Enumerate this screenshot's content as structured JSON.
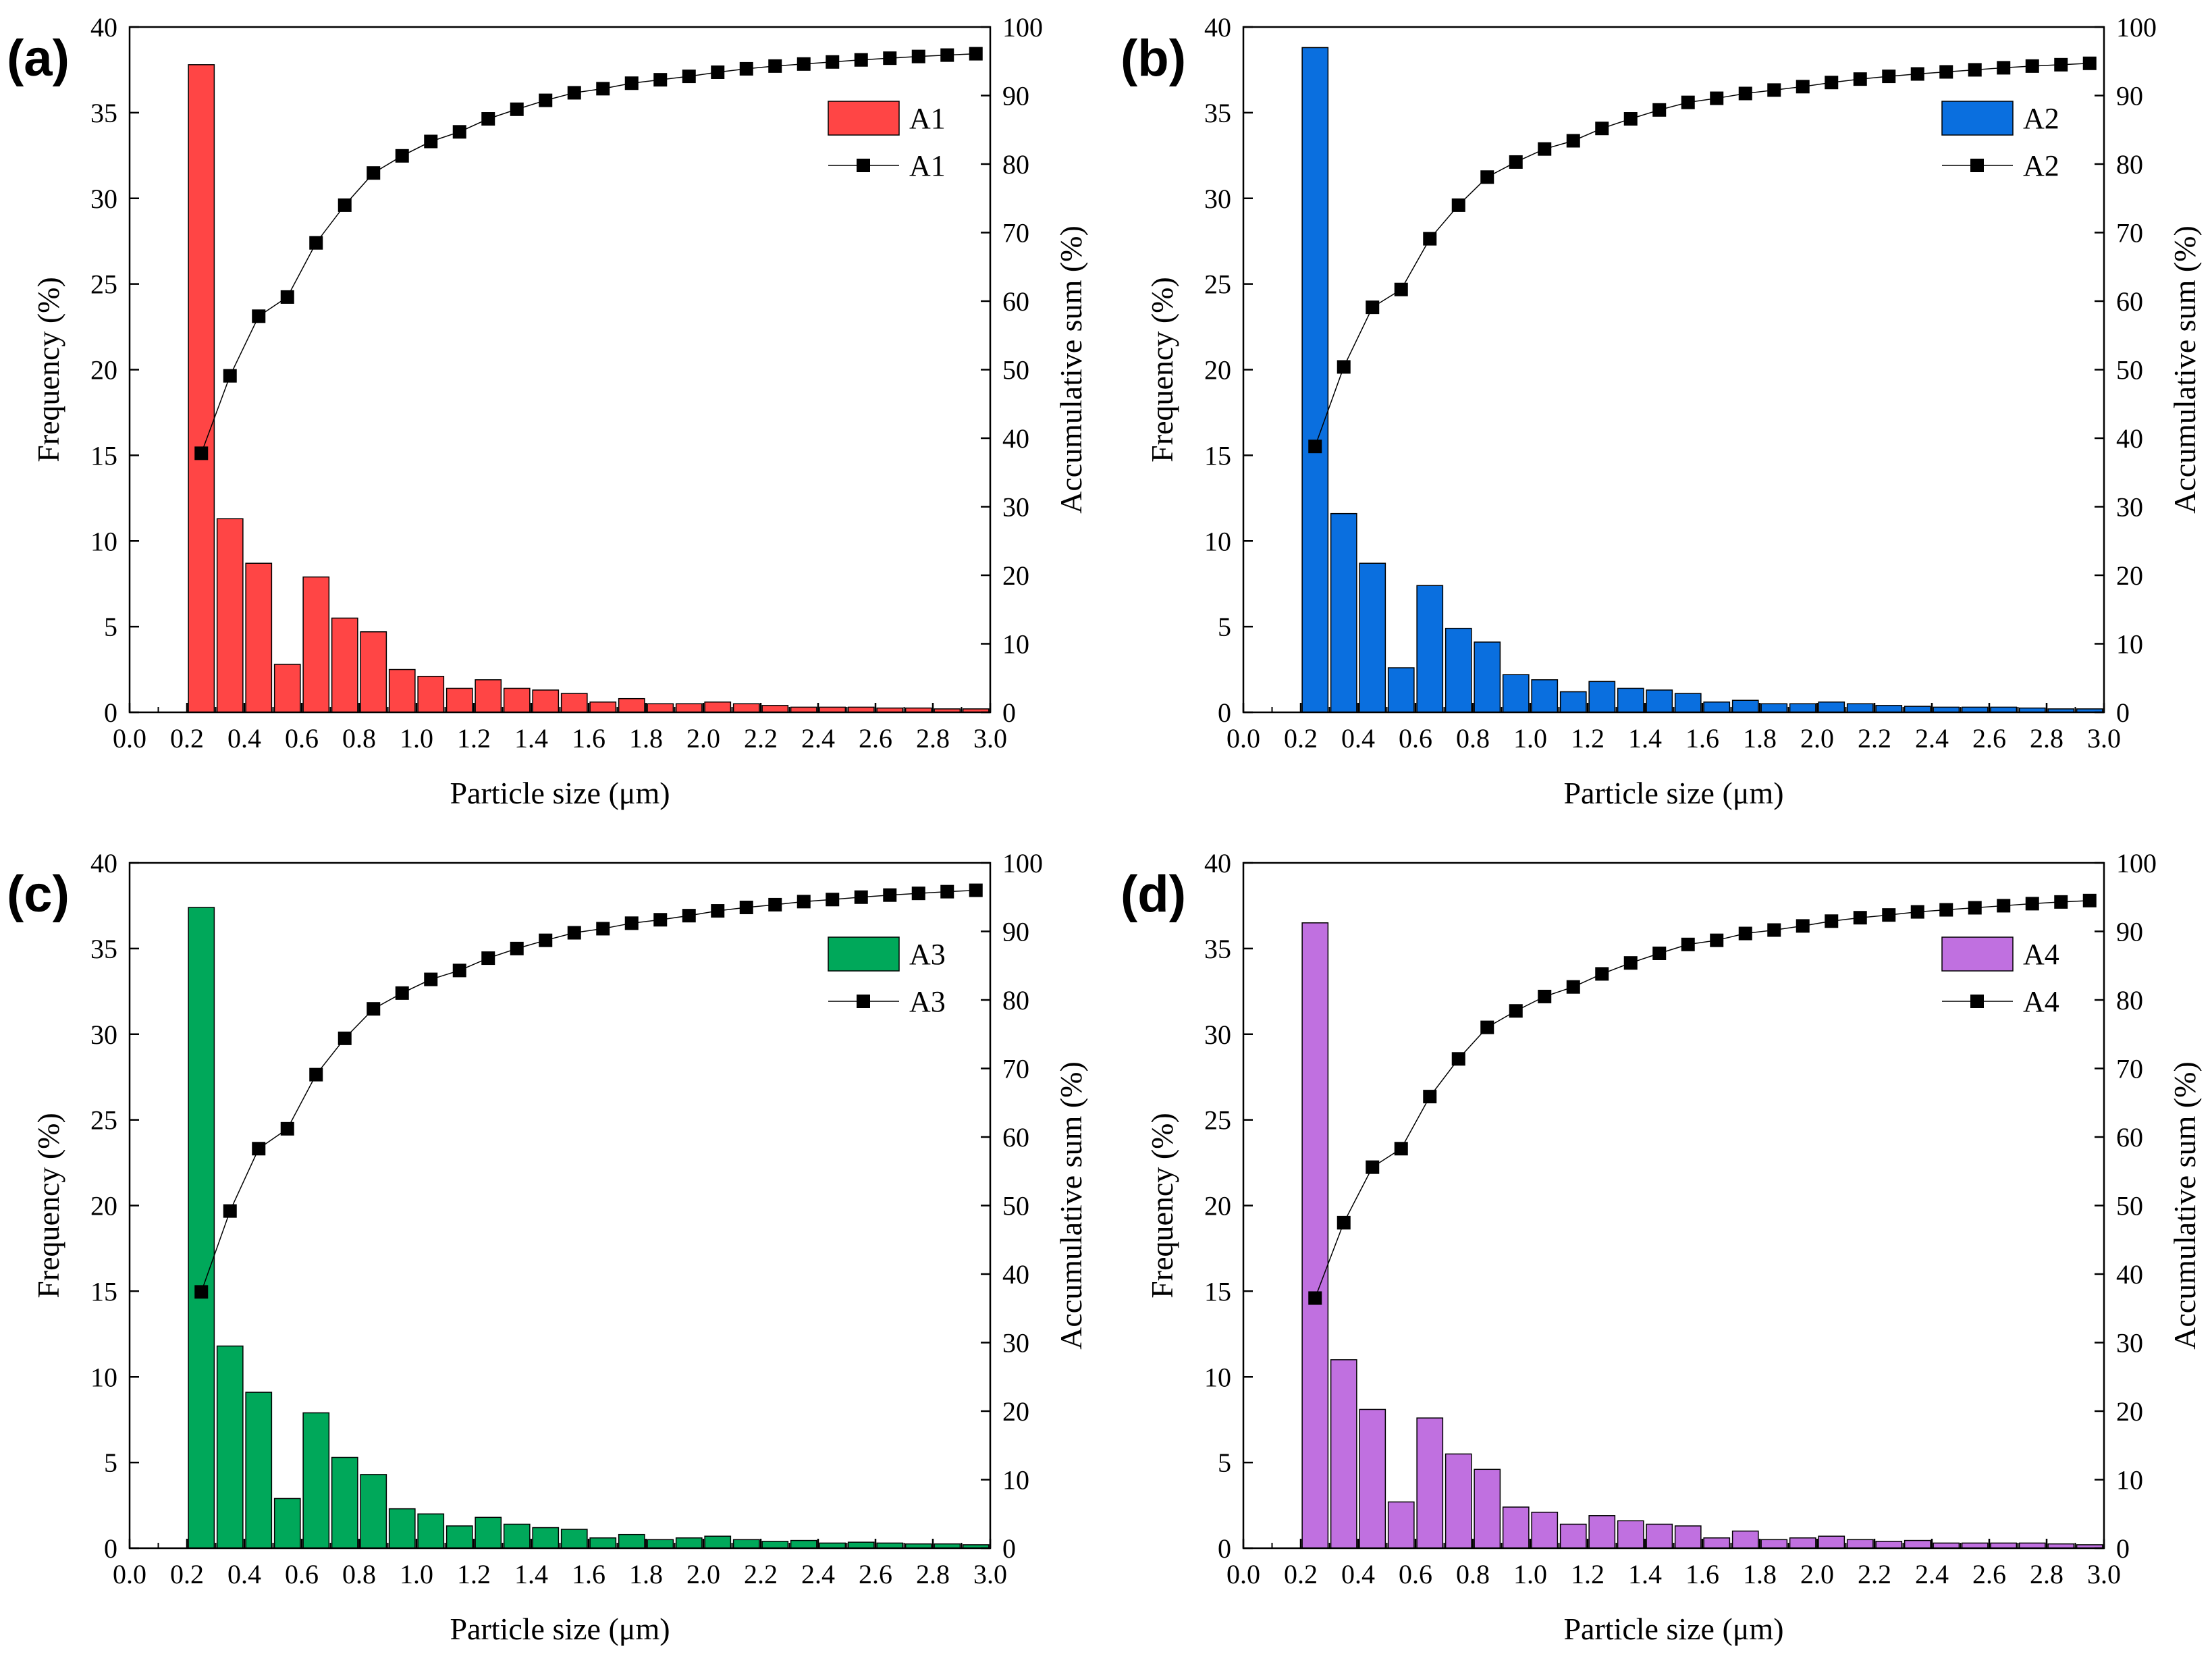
{
  "figure": {
    "x_categories": [
      0.25,
      0.35,
      0.45,
      0.55,
      0.65,
      0.75,
      0.85,
      0.95,
      1.05,
      1.15,
      1.25,
      1.35,
      1.45,
      1.55,
      1.65,
      1.75,
      1.85,
      1.95,
      2.05,
      2.15,
      2.25,
      2.35,
      2.45,
      2.55,
      2.65,
      2.75,
      2.85,
      2.95
    ]
  },
  "chart_data": [
    {
      "type": "bar",
      "panel_label": "(a)",
      "title": "",
      "xlabel": "Particle size (μm)",
      "ylabel": "Frequency (%)",
      "y2label": "Accumulative sum (%)",
      "xlim": [
        0.0,
        3.0
      ],
      "ylim": [
        0,
        40
      ],
      "y2lim": [
        0,
        100
      ],
      "x_ticks": [
        "0.0",
        "0.2",
        "0.4",
        "0.6",
        "0.8",
        "1.0",
        "1.2",
        "1.4",
        "1.6",
        "1.8",
        "2.0",
        "2.2",
        "2.4",
        "2.6",
        "2.8",
        "3.0"
      ],
      "y_ticks": [
        "0",
        "5",
        "10",
        "15",
        "20",
        "25",
        "30",
        "35",
        "40"
      ],
      "y2_ticks": [
        "0",
        "10",
        "20",
        "30",
        "40",
        "50",
        "60",
        "70",
        "80",
        "90",
        "100"
      ],
      "color": "#ff4545",
      "legend_position": "top-right",
      "series": [
        {
          "name": "A1",
          "kind": "bar",
          "axis": "left",
          "values": [
            37.8,
            11.3,
            8.7,
            2.8,
            7.9,
            5.5,
            4.7,
            2.5,
            2.1,
            1.4,
            1.9,
            1.4,
            1.3,
            1.1,
            0.6,
            0.8,
            0.5,
            0.5,
            0.6,
            0.5,
            0.4,
            0.3,
            0.3,
            0.3,
            0.25,
            0.25,
            0.2,
            0.2
          ]
        },
        {
          "name": "A1",
          "kind": "line",
          "axis": "right",
          "values": [
            37.8,
            49.1,
            57.8,
            60.6,
            68.5,
            74.0,
            78.7,
            81.2,
            83.3,
            84.7,
            86.6,
            88.0,
            89.3,
            90.4,
            91.0,
            91.8,
            92.3,
            92.8,
            93.4,
            93.9,
            94.3,
            94.6,
            94.9,
            95.2,
            95.45,
            95.7,
            95.9,
            96.1
          ]
        }
      ]
    },
    {
      "type": "bar",
      "panel_label": "(b)",
      "title": "",
      "xlabel": "Particle size (μm)",
      "ylabel": "Frequency (%)",
      "y2label": "Accumulative sum (%)",
      "xlim": [
        0.0,
        3.0
      ],
      "ylim": [
        0,
        40
      ],
      "y2lim": [
        0,
        100
      ],
      "x_ticks": [
        "0.0",
        "0.2",
        "0.4",
        "0.6",
        "0.8",
        "1.0",
        "1.2",
        "1.4",
        "1.6",
        "1.8",
        "2.0",
        "2.2",
        "2.4",
        "2.6",
        "2.8",
        "3.0"
      ],
      "y_ticks": [
        "0",
        "5",
        "10",
        "15",
        "20",
        "25",
        "30",
        "35",
        "40"
      ],
      "y2_ticks": [
        "0",
        "10",
        "20",
        "30",
        "40",
        "50",
        "60",
        "70",
        "80",
        "90",
        "100"
      ],
      "color": "#0a6fdf",
      "legend_position": "top-right",
      "series": [
        {
          "name": "A2",
          "kind": "bar",
          "axis": "left",
          "values": [
            38.8,
            11.6,
            8.7,
            2.6,
            7.4,
            4.9,
            4.1,
            2.2,
            1.9,
            1.2,
            1.8,
            1.4,
            1.3,
            1.1,
            0.6,
            0.7,
            0.5,
            0.5,
            0.6,
            0.5,
            0.4,
            0.35,
            0.3,
            0.3,
            0.3,
            0.25,
            0.2,
            0.2
          ]
        },
        {
          "name": "A2",
          "kind": "line",
          "axis": "right",
          "values": [
            38.8,
            50.4,
            59.1,
            61.7,
            69.1,
            74.0,
            78.1,
            80.3,
            82.2,
            83.4,
            85.2,
            86.6,
            87.9,
            89.0,
            89.6,
            90.3,
            90.8,
            91.3,
            91.9,
            92.4,
            92.8,
            93.15,
            93.45,
            93.75,
            94.05,
            94.3,
            94.5,
            94.7
          ]
        }
      ]
    },
    {
      "type": "bar",
      "panel_label": "(c)",
      "title": "",
      "xlabel": "Particle size (μm)",
      "ylabel": "Frequency (%)",
      "y2label": "Accumulative sum (%)",
      "xlim": [
        0.0,
        3.0
      ],
      "ylim": [
        0,
        40
      ],
      "y2lim": [
        0,
        100
      ],
      "x_ticks": [
        "0.0",
        "0.2",
        "0.4",
        "0.6",
        "0.8",
        "1.0",
        "1.2",
        "1.4",
        "1.6",
        "1.8",
        "2.0",
        "2.2",
        "2.4",
        "2.6",
        "2.8",
        "3.0"
      ],
      "y_ticks": [
        "0",
        "5",
        "10",
        "15",
        "20",
        "25",
        "30",
        "35",
        "40"
      ],
      "y2_ticks": [
        "0",
        "10",
        "20",
        "30",
        "40",
        "50",
        "60",
        "70",
        "80",
        "90",
        "100"
      ],
      "color": "#00a85a",
      "legend_position": "top-right",
      "series": [
        {
          "name": "A3",
          "kind": "bar",
          "axis": "left",
          "values": [
            37.4,
            11.8,
            9.1,
            2.9,
            7.9,
            5.3,
            4.3,
            2.3,
            2.0,
            1.3,
            1.8,
            1.4,
            1.2,
            1.1,
            0.6,
            0.8,
            0.5,
            0.6,
            0.7,
            0.5,
            0.4,
            0.45,
            0.3,
            0.35,
            0.3,
            0.25,
            0.25,
            0.2
          ]
        },
        {
          "name": "A3",
          "kind": "line",
          "axis": "right",
          "values": [
            37.4,
            49.2,
            58.3,
            61.2,
            69.1,
            74.4,
            78.7,
            81.0,
            83.0,
            84.3,
            86.1,
            87.5,
            88.7,
            89.8,
            90.4,
            91.2,
            91.7,
            92.3,
            93.0,
            93.5,
            93.9,
            94.35,
            94.65,
            95.0,
            95.3,
            95.55,
            95.8,
            96.0
          ]
        }
      ]
    },
    {
      "type": "bar",
      "panel_label": "(d)",
      "title": "",
      "xlabel": "Particle size (μm)",
      "ylabel": "Frequency (%)",
      "y2label": "Accumulative sum (%)",
      "xlim": [
        0.0,
        3.0
      ],
      "ylim": [
        0,
        40
      ],
      "y2lim": [
        0,
        100
      ],
      "x_ticks": [
        "0.0",
        "0.2",
        "0.4",
        "0.6",
        "0.8",
        "1.0",
        "1.2",
        "1.4",
        "1.6",
        "1.8",
        "2.0",
        "2.2",
        "2.4",
        "2.6",
        "2.8",
        "3.0"
      ],
      "y_ticks": [
        "0",
        "5",
        "10",
        "15",
        "20",
        "25",
        "30",
        "35",
        "40"
      ],
      "y2_ticks": [
        "0",
        "10",
        "20",
        "30",
        "40",
        "50",
        "60",
        "70",
        "80",
        "90",
        "100"
      ],
      "color": "#c070e0",
      "legend_position": "top-right",
      "series": [
        {
          "name": "A4",
          "kind": "bar",
          "axis": "left",
          "values": [
            36.5,
            11.0,
            8.1,
            2.7,
            7.6,
            5.5,
            4.6,
            2.4,
            2.1,
            1.4,
            1.9,
            1.6,
            1.4,
            1.3,
            0.6,
            1.0,
            0.5,
            0.6,
            0.7,
            0.5,
            0.4,
            0.45,
            0.3,
            0.3,
            0.3,
            0.3,
            0.25,
            0.2
          ]
        },
        {
          "name": "A4",
          "kind": "line",
          "axis": "right",
          "values": [
            36.5,
            47.5,
            55.6,
            58.3,
            65.9,
            71.4,
            76.0,
            78.4,
            80.5,
            81.9,
            83.8,
            85.4,
            86.8,
            88.1,
            88.7,
            89.7,
            90.2,
            90.8,
            91.5,
            92.0,
            92.4,
            92.85,
            93.15,
            93.45,
            93.75,
            94.05,
            94.3,
            94.5
          ]
        }
      ]
    }
  ]
}
